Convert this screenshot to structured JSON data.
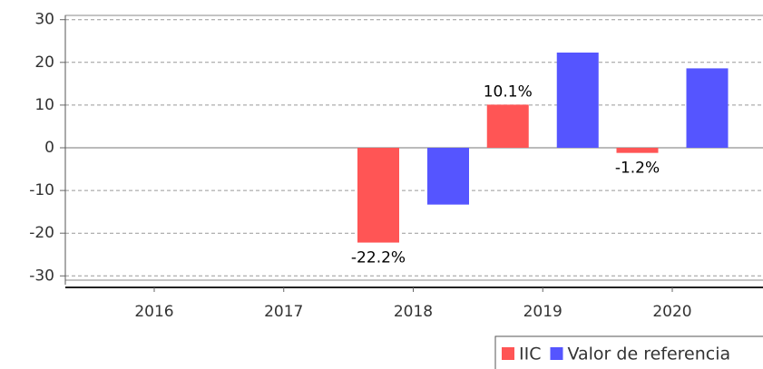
{
  "chart_data": {
    "type": "bar",
    "categories": [
      "2016",
      "2017",
      "2018",
      "2019",
      "2020"
    ],
    "series": [
      {
        "name": "IIC",
        "color": "#ff5555",
        "values": [
          null,
          null,
          -22.2,
          10.1,
          -1.2
        ],
        "value_labels": [
          null,
          null,
          "-22.2%",
          "10.1%",
          "-1.2%"
        ]
      },
      {
        "name": "Valor de referencia",
        "color": "#5555ff",
        "values": [
          null,
          null,
          -13.3,
          22.3,
          18.6
        ]
      }
    ],
    "ylim": [
      -31,
      31
    ],
    "yticks": [
      -30,
      -20,
      -10,
      0,
      10,
      20,
      30
    ],
    "grid": true
  }
}
